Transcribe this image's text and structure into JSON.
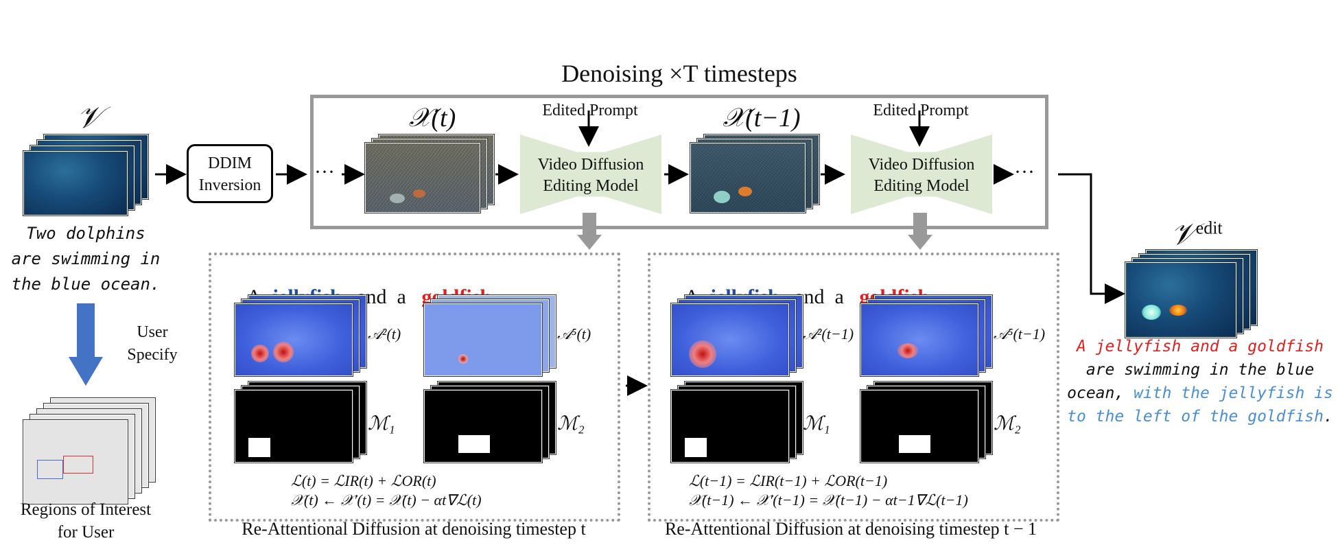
{
  "title": "Denoising ×T timesteps",
  "input_video_symbol": "𝒱",
  "input_caption": [
    "Two dolphins",
    "are swimming in",
    "the blue ocean."
  ],
  "user_specify": [
    "User",
    "Specify"
  ],
  "roi_caption": [
    "Regions of Interest",
    "for User"
  ],
  "ddim": [
    "DDIM",
    "Inversion"
  ],
  "ellipsis": "···",
  "x_t": "𝒳(t)",
  "x_t1": "𝒳(t−1)",
  "edited_prompt": "Edited Prompt",
  "model_label": [
    "Video Diffusion",
    "Editing Model"
  ],
  "prompt_tokens": {
    "a": "A",
    "jellyfish": "jellyfish",
    "and_a": "and  a",
    "goldfish": "goldfish",
    "dots": "···"
  },
  "left_panel": {
    "attn1": "𝒜²(t)",
    "attn2": "𝒜⁵(t)",
    "mask1": "ℳ₁",
    "mask2": "ℳ₂",
    "eq1": "ℒ(t) = ℒIR(t) + ℒOR(t)",
    "eq2": "𝒳(t) ← 𝒳′(t) = 𝒳(t) − αt∇ℒ(t)",
    "caption": "Re-Attentional Diffusion at denoising timestep t"
  },
  "right_panel": {
    "attn1": "𝒜²(t−1)",
    "attn2": "𝒜⁵(t−1)",
    "mask1": "ℳ₁",
    "mask2": "ℳ₂",
    "eq1": "ℒ(t−1) = ℒIR(t−1) + ℒOR(t−1)",
    "eq2": "𝒳(t−1) ← 𝒳′(t−1) = 𝒳(t−1) − αt−1∇ℒ(t−1)",
    "caption": "Re-Attentional Diffusion at denoising timestep t − 1"
  },
  "output_symbol": "𝒱",
  "output_sup": "edit",
  "output_caption": {
    "red": "A jellyfish and a goldfish",
    "black1": "are swimming in the blue",
    "black2": "ocean,",
    "blue1": " with the jellyfish is",
    "blue2": "to the left of the goldfish",
    "end": "."
  },
  "colors": {
    "frame_gray": "#999999",
    "model_fill": "#dde9d3",
    "arrow_blue": "#4472c4",
    "red": "#e01f1f",
    "dark_blue": "#1f4e9c",
    "light_blue": "#4a8ed4"
  }
}
